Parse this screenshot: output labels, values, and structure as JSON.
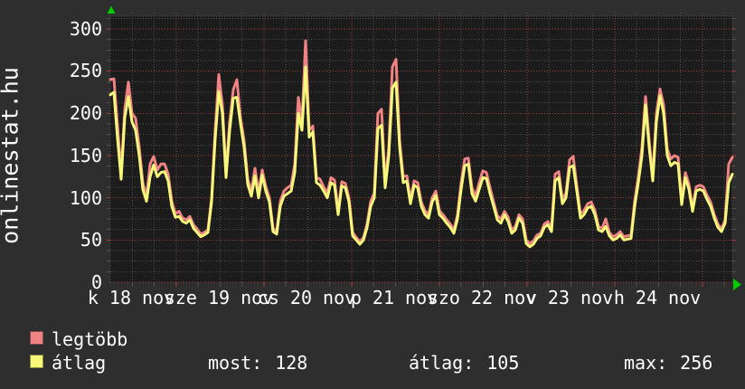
{
  "page": {
    "background": "#2e2e2e",
    "plot_background": "#1c1c1c",
    "grid_minor_color": "#4e4e4e",
    "grid_major_color": "#a03c3c",
    "axis_arrow_color": "#00cc00",
    "text_color": "#ffffff"
  },
  "watermark": "onlinestat.hu",
  "chart_data": {
    "type": "line",
    "y_axis": {
      "tick_labels": [
        "300",
        "250",
        "200",
        "150",
        "100",
        "50",
        "0"
      ],
      "min": 0,
      "max": 300,
      "major_step": 50,
      "minor_step": 12.5
    },
    "x_axis": {
      "tick_labels": [
        "k 18 nov",
        "sze 19 nov",
        "cs 20 nov",
        "p 21 nov",
        "szo 22 nov",
        "v 23 nov",
        "h 24 nov"
      ],
      "days": 7
    },
    "grid": true,
    "legend_position": "bottom-left",
    "series": [
      {
        "name": "legtöbb",
        "color": "#f08383",
        "values": [
          240,
          241,
          185,
          130,
          205,
          237,
          200,
          194,
          160,
          118,
          101,
          140,
          149,
          133,
          140,
          140,
          128,
          96,
          81,
          84,
          76,
          74,
          78,
          68,
          63,
          57,
          59,
          62,
          100,
          180,
          246,
          210,
          130,
          190,
          228,
          240,
          195,
          168,
          122,
          108,
          135,
          106,
          133,
          113,
          100,
          64,
          60,
          96,
          108,
          112,
          115,
          140,
          219,
          190,
          286,
          180,
          185,
          124,
          122,
          113,
          106,
          124,
          121,
          85,
          119,
          117,
          100,
          59,
          53,
          48,
          53,
          69,
          96,
          106,
          200,
          205,
          118,
          160,
          255,
          264,
          168,
          125,
          126,
          98,
          120,
          118,
          95,
          85,
          80,
          100,
          108,
          85,
          80,
          74,
          69,
          62,
          80,
          118,
          146,
          147,
          112,
          102,
          118,
          132,
          130,
          112,
          95,
          79,
          75,
          84,
          77,
          62,
          66,
          80,
          75,
          50,
          46,
          49,
          56,
          58,
          69,
          72,
          64,
          128,
          131,
          98,
          106,
          145,
          149,
          114,
          81,
          85,
          93,
          95,
          85,
          66,
          64,
          75,
          59,
          54,
          56,
          60,
          54,
          55,
          56,
          97,
          125,
          160,
          220,
          168,
          126,
          200,
          229,
          210,
          158,
          146,
          150,
          148,
          97,
          130,
          116,
          88,
          113,
          115,
          113,
          103,
          95,
          80,
          69,
          63,
          74,
          140,
          148
        ]
      },
      {
        "name": "átlag",
        "color": "#f7f779",
        "values": [
          222,
          225,
          170,
          122,
          195,
          220,
          190,
          180,
          150,
          110,
          96,
          125,
          139,
          125,
          130,
          131,
          120,
          90,
          77,
          78,
          72,
          70,
          74,
          64,
          59,
          54,
          56,
          59,
          95,
          170,
          226,
          200,
          124,
          180,
          218,
          219,
          188,
          160,
          116,
          102,
          126,
          100,
          127,
          108,
          95,
          60,
          57,
          90,
          102,
          105,
          108,
          130,
          200,
          180,
          255,
          172,
          178,
          118,
          115,
          108,
          100,
          118,
          115,
          80,
          114,
          112,
          95,
          55,
          50,
          45,
          50,
          65,
          90,
          100,
          182,
          186,
          112,
          150,
          230,
          237,
          160,
          118,
          120,
          93,
          115,
          112,
          90,
          80,
          76,
          95,
          103,
          80,
          76,
          70,
          65,
          58,
          75,
          110,
          138,
          140,
          105,
          96,
          110,
          124,
          123,
          105,
          90,
          74,
          70,
          80,
          72,
          58,
          62,
          76,
          70,
          46,
          42,
          45,
          52,
          55,
          65,
          68,
          60,
          120,
          124,
          93,
          100,
          136,
          138,
          108,
          76,
          80,
          88,
          90,
          80,
          62,
          60,
          66,
          55,
          50,
          52,
          56,
          50,
          51,
          52,
          90,
          118,
          150,
          210,
          160,
          120,
          190,
          221,
          200,
          150,
          138,
          142,
          140,
          92,
          124,
          110,
          84,
          108,
          110,
          108,
          98,
          90,
          76,
          65,
          60,
          70,
          118,
          128
        ]
      }
    ]
  },
  "legend": {
    "items": [
      {
        "label": "legtöbb",
        "color": "#f08383"
      },
      {
        "label": "átlag",
        "color": "#f7f779"
      }
    ]
  },
  "stats": {
    "items": [
      {
        "label": "most:",
        "value": "128"
      },
      {
        "label": "átlag:",
        "value": "105"
      },
      {
        "label": "max:",
        "value": "256"
      }
    ]
  }
}
